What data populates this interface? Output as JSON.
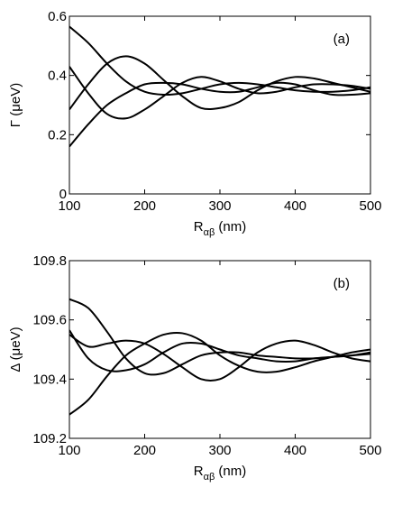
{
  "chart_data": [
    {
      "type": "line",
      "panel_label": "(a)",
      "xlabel": {
        "main": "R",
        "subscript": "αβ",
        "unit": " (nm)"
      },
      "ylabel": "Γ (μeV)",
      "xlim": [
        100,
        500
      ],
      "ylim": [
        0,
        0.6
      ],
      "x_ticks": [
        "100",
        "200",
        "300",
        "400",
        "500"
      ],
      "y_ticks": [
        "0",
        "0.2",
        "0.4",
        "0.6"
      ],
      "grid": false,
      "series": [
        {
          "x": [
            100,
            125,
            150,
            175,
            200,
            225,
            250,
            275,
            300,
            325,
            350,
            375,
            400,
            425,
            450,
            475,
            500
          ],
          "values": [
            0.565,
            0.51,
            0.44,
            0.38,
            0.345,
            0.335,
            0.34,
            0.355,
            0.37,
            0.375,
            0.37,
            0.36,
            0.35,
            0.345,
            0.345,
            0.35,
            0.36
          ]
        },
        {
          "x": [
            100,
            125,
            150,
            175,
            200,
            225,
            250,
            275,
            300,
            325,
            350,
            375,
            400,
            425,
            450,
            475,
            500
          ],
          "values": [
            0.43,
            0.34,
            0.27,
            0.255,
            0.285,
            0.33,
            0.375,
            0.395,
            0.38,
            0.355,
            0.34,
            0.345,
            0.36,
            0.37,
            0.37,
            0.365,
            0.355
          ]
        },
        {
          "x": [
            100,
            125,
            150,
            175,
            200,
            225,
            250,
            275,
            300,
            325,
            350,
            375,
            400,
            425,
            450,
            475,
            500
          ],
          "values": [
            0.285,
            0.37,
            0.44,
            0.465,
            0.44,
            0.385,
            0.33,
            0.29,
            0.29,
            0.31,
            0.35,
            0.38,
            0.395,
            0.39,
            0.375,
            0.36,
            0.345
          ]
        },
        {
          "x": [
            100,
            125,
            150,
            175,
            200,
            225,
            250,
            275,
            300,
            325,
            350,
            375,
            400,
            425,
            450,
            475,
            500
          ],
          "values": [
            0.16,
            0.235,
            0.3,
            0.34,
            0.37,
            0.375,
            0.37,
            0.355,
            0.345,
            0.345,
            0.36,
            0.375,
            0.37,
            0.35,
            0.335,
            0.335,
            0.34
          ]
        }
      ]
    },
    {
      "type": "line",
      "panel_label": "(b)",
      "xlabel": {
        "main": "R",
        "subscript": "αβ",
        "unit": " (nm)"
      },
      "ylabel": "Δ (μeV)",
      "xlim": [
        100,
        500
      ],
      "ylim": [
        109.2,
        109.8
      ],
      "x_ticks": [
        "100",
        "200",
        "300",
        "400",
        "500"
      ],
      "y_ticks": [
        "109.2",
        "109.4",
        "109.6",
        "109.8"
      ],
      "grid": false,
      "series": [
        {
          "x": [
            100,
            125,
            150,
            175,
            200,
            225,
            250,
            275,
            300,
            325,
            350,
            375,
            400,
            425,
            450,
            475,
            500
          ],
          "values": [
            109.67,
            109.64,
            109.56,
            109.47,
            109.42,
            109.42,
            109.45,
            109.48,
            109.49,
            109.49,
            109.48,
            109.475,
            109.47,
            109.47,
            109.475,
            109.48,
            109.485
          ]
        },
        {
          "x": [
            100,
            125,
            150,
            175,
            200,
            225,
            250,
            275,
            300,
            325,
            350,
            375,
            400,
            425,
            450,
            475,
            500
          ],
          "values": [
            109.565,
            109.47,
            109.43,
            109.43,
            109.45,
            109.49,
            109.52,
            109.52,
            109.5,
            109.48,
            109.47,
            109.46,
            109.46,
            109.47,
            109.475,
            109.48,
            109.49
          ]
        },
        {
          "x": [
            100,
            125,
            150,
            175,
            200,
            225,
            250,
            275,
            300,
            325,
            350,
            375,
            400,
            425,
            450,
            475,
            500
          ],
          "values": [
            109.55,
            109.51,
            109.52,
            109.53,
            109.52,
            109.485,
            109.44,
            109.4,
            109.4,
            109.44,
            109.49,
            109.52,
            109.53,
            109.515,
            109.49,
            109.47,
            109.46
          ]
        },
        {
          "x": [
            100,
            125,
            150,
            175,
            200,
            225,
            250,
            275,
            300,
            325,
            350,
            375,
            400,
            425,
            450,
            475,
            500
          ],
          "values": [
            109.28,
            109.33,
            109.41,
            109.48,
            109.52,
            109.55,
            109.555,
            109.53,
            109.48,
            109.445,
            109.425,
            109.425,
            109.44,
            109.46,
            109.475,
            109.49,
            109.5
          ]
        }
      ]
    }
  ]
}
